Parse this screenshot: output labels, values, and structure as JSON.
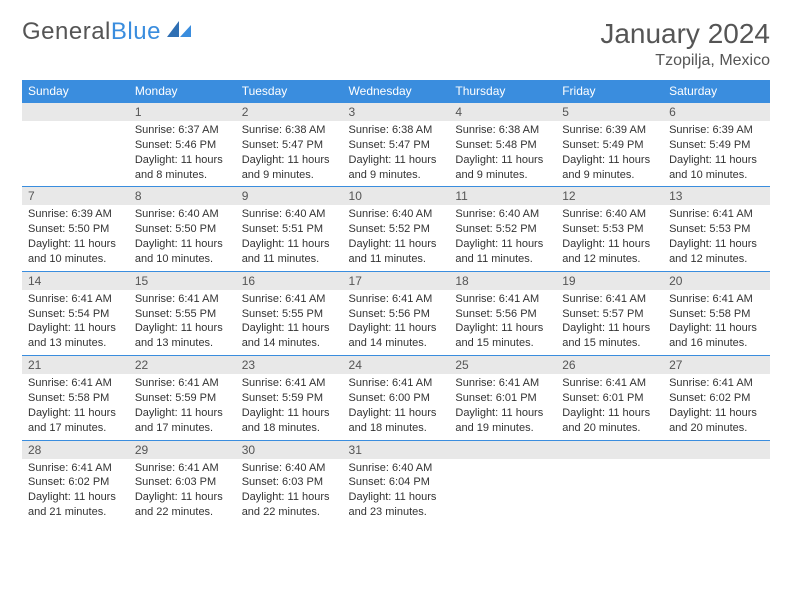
{
  "brand": {
    "part1": "General",
    "part2": "Blue"
  },
  "title": "January 2024",
  "location": "Tzopilja, Mexico",
  "styling": {
    "header_bg": "#3a8dde",
    "header_fg": "#ffffff",
    "daynum_bg": "#e8e8e8",
    "daynum_fg": "#555555",
    "row_divider": "#3a8dde",
    "page_bg": "#ffffff",
    "body_text": "#333333",
    "title_color": "#555555",
    "font_family": "Arial",
    "month_title_fontsize": 28,
    "location_fontsize": 16,
    "header_fontsize": 12,
    "cell_fontsize": 11,
    "columns": 7,
    "rows": 5
  },
  "weekdays": [
    "Sunday",
    "Monday",
    "Tuesday",
    "Wednesday",
    "Thursday",
    "Friday",
    "Saturday"
  ],
  "days": [
    null,
    {
      "n": "1",
      "sunrise": "6:37 AM",
      "sunset": "5:46 PM",
      "daylight": "11 hours and 8 minutes."
    },
    {
      "n": "2",
      "sunrise": "6:38 AM",
      "sunset": "5:47 PM",
      "daylight": "11 hours and 9 minutes."
    },
    {
      "n": "3",
      "sunrise": "6:38 AM",
      "sunset": "5:47 PM",
      "daylight": "11 hours and 9 minutes."
    },
    {
      "n": "4",
      "sunrise": "6:38 AM",
      "sunset": "5:48 PM",
      "daylight": "11 hours and 9 minutes."
    },
    {
      "n": "5",
      "sunrise": "6:39 AM",
      "sunset": "5:49 PM",
      "daylight": "11 hours and 9 minutes."
    },
    {
      "n": "6",
      "sunrise": "6:39 AM",
      "sunset": "5:49 PM",
      "daylight": "11 hours and 10 minutes."
    },
    {
      "n": "7",
      "sunrise": "6:39 AM",
      "sunset": "5:50 PM",
      "daylight": "11 hours and 10 minutes."
    },
    {
      "n": "8",
      "sunrise": "6:40 AM",
      "sunset": "5:50 PM",
      "daylight": "11 hours and 10 minutes."
    },
    {
      "n": "9",
      "sunrise": "6:40 AM",
      "sunset": "5:51 PM",
      "daylight": "11 hours and 11 minutes."
    },
    {
      "n": "10",
      "sunrise": "6:40 AM",
      "sunset": "5:52 PM",
      "daylight": "11 hours and 11 minutes."
    },
    {
      "n": "11",
      "sunrise": "6:40 AM",
      "sunset": "5:52 PM",
      "daylight": "11 hours and 11 minutes."
    },
    {
      "n": "12",
      "sunrise": "6:40 AM",
      "sunset": "5:53 PM",
      "daylight": "11 hours and 12 minutes."
    },
    {
      "n": "13",
      "sunrise": "6:41 AM",
      "sunset": "5:53 PM",
      "daylight": "11 hours and 12 minutes."
    },
    {
      "n": "14",
      "sunrise": "6:41 AM",
      "sunset": "5:54 PM",
      "daylight": "11 hours and 13 minutes."
    },
    {
      "n": "15",
      "sunrise": "6:41 AM",
      "sunset": "5:55 PM",
      "daylight": "11 hours and 13 minutes."
    },
    {
      "n": "16",
      "sunrise": "6:41 AM",
      "sunset": "5:55 PM",
      "daylight": "11 hours and 14 minutes."
    },
    {
      "n": "17",
      "sunrise": "6:41 AM",
      "sunset": "5:56 PM",
      "daylight": "11 hours and 14 minutes."
    },
    {
      "n": "18",
      "sunrise": "6:41 AM",
      "sunset": "5:56 PM",
      "daylight": "11 hours and 15 minutes."
    },
    {
      "n": "19",
      "sunrise": "6:41 AM",
      "sunset": "5:57 PM",
      "daylight": "11 hours and 15 minutes."
    },
    {
      "n": "20",
      "sunrise": "6:41 AM",
      "sunset": "5:58 PM",
      "daylight": "11 hours and 16 minutes."
    },
    {
      "n": "21",
      "sunrise": "6:41 AM",
      "sunset": "5:58 PM",
      "daylight": "11 hours and 17 minutes."
    },
    {
      "n": "22",
      "sunrise": "6:41 AM",
      "sunset": "5:59 PM",
      "daylight": "11 hours and 17 minutes."
    },
    {
      "n": "23",
      "sunrise": "6:41 AM",
      "sunset": "5:59 PM",
      "daylight": "11 hours and 18 minutes."
    },
    {
      "n": "24",
      "sunrise": "6:41 AM",
      "sunset": "6:00 PM",
      "daylight": "11 hours and 18 minutes."
    },
    {
      "n": "25",
      "sunrise": "6:41 AM",
      "sunset": "6:01 PM",
      "daylight": "11 hours and 19 minutes."
    },
    {
      "n": "26",
      "sunrise": "6:41 AM",
      "sunset": "6:01 PM",
      "daylight": "11 hours and 20 minutes."
    },
    {
      "n": "27",
      "sunrise": "6:41 AM",
      "sunset": "6:02 PM",
      "daylight": "11 hours and 20 minutes."
    },
    {
      "n": "28",
      "sunrise": "6:41 AM",
      "sunset": "6:02 PM",
      "daylight": "11 hours and 21 minutes."
    },
    {
      "n": "29",
      "sunrise": "6:41 AM",
      "sunset": "6:03 PM",
      "daylight": "11 hours and 22 minutes."
    },
    {
      "n": "30",
      "sunrise": "6:40 AM",
      "sunset": "6:03 PM",
      "daylight": "11 hours and 22 minutes."
    },
    {
      "n": "31",
      "sunrise": "6:40 AM",
      "sunset": "6:04 PM",
      "daylight": "11 hours and 23 minutes."
    },
    null,
    null,
    null
  ],
  "labels": {
    "sunrise": "Sunrise:",
    "sunset": "Sunset:",
    "daylight": "Daylight:"
  }
}
